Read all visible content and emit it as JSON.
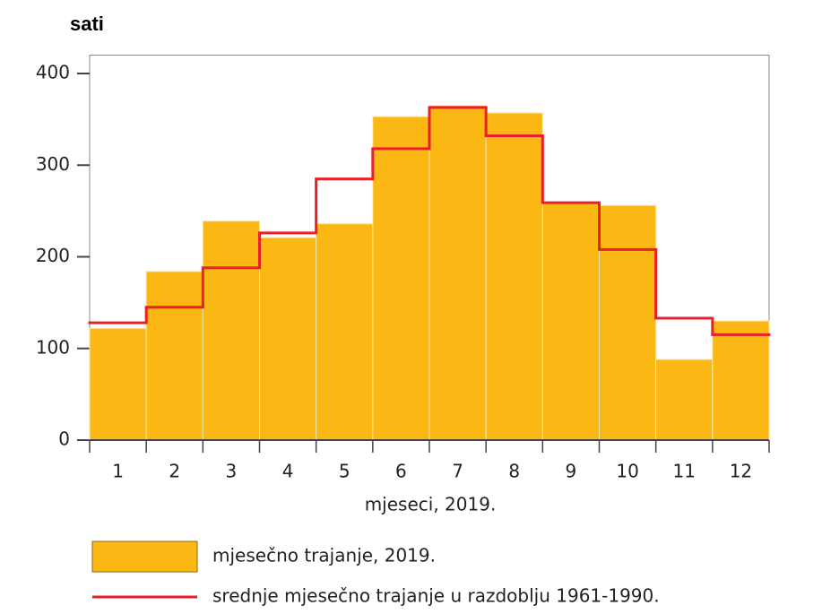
{
  "chart_data": {
    "type": "bar",
    "title": "sati",
    "x_label": "mjeseci, 2019.",
    "categories": [
      "1",
      "2",
      "3",
      "4",
      "5",
      "6",
      "7",
      "8",
      "9",
      "10",
      "11",
      "12"
    ],
    "series": [
      {
        "name": "mjesečno trajanje, 2019.",
        "type": "bar",
        "color": "#fbb714",
        "values": [
          122,
          184,
          239,
          221,
          236,
          353,
          365,
          357,
          259,
          256,
          88,
          130
        ]
      },
      {
        "name": "srednje mjesečno trajanje u razdoblju 1961-1990.",
        "type": "step",
        "color": "#e8202a",
        "values": [
          128,
          145,
          188,
          226,
          285,
          318,
          363,
          332,
          259,
          208,
          133,
          115
        ]
      }
    ],
    "ylim": [
      0,
      420
    ],
    "yticks": [
      0,
      100,
      200,
      300,
      400
    ]
  }
}
